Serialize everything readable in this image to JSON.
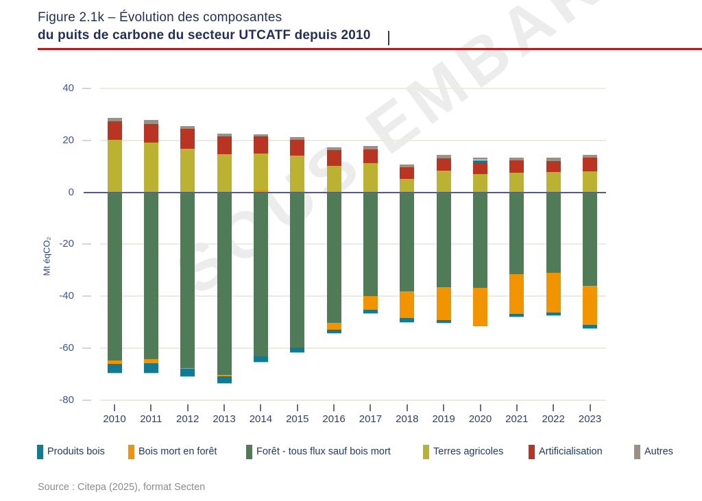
{
  "watermark": "SOUS EMBARGO",
  "header": {
    "title_line1": "Figure 2.1k – Évolution des composantes",
    "title_line2": "du puits de carbone du secteur UTCATF depuis 2010"
  },
  "source": "Source : Citepa (2025), format Secten",
  "accent_colors": {
    "title_text": "#212f5d",
    "title_rule_red": "#c0191c",
    "axis_text": "#3a55a0",
    "zero_line": "#4d5e85",
    "gridline": "#edeade",
    "watermark_gray": "#ececec",
    "source_gray": "#8c8c8c"
  },
  "chart_data": {
    "type": "bar",
    "stacked": true,
    "title": "Évolution des composantes du puits de carbone du secteur UTCATF depuis 2010",
    "xlabel": "",
    "ylabel": "Mt éqCO₂",
    "unit": "Mt éqCO2",
    "ylim": [
      -80,
      40
    ],
    "yticks": [
      40,
      20,
      0,
      -20,
      -40,
      -60,
      -80
    ],
    "grid": true,
    "legend_position": "bottom",
    "categories": [
      "2010",
      "2011",
      "2012",
      "2013",
      "2014",
      "2015",
      "2016",
      "2017",
      "2018",
      "2019",
      "2020",
      "2021",
      "2022",
      "2023"
    ],
    "series": [
      {
        "name": "Produits bois",
        "color": "#117b93",
        "values": [
          -3.4,
          -3.7,
          -2.9,
          -2.6,
          -2.1,
          -1.9,
          -1.4,
          -1.3,
          -1.4,
          -1.0,
          0.9,
          -1.1,
          -1.1,
          -1.3
        ]
      },
      {
        "name": "Bois mort en forêt",
        "color": "#f29400",
        "values": [
          -1.3,
          -1.6,
          -0.3,
          -0.7,
          0.8,
          0.5,
          -2.5,
          -5.3,
          -10.3,
          -12.7,
          -15.0,
          -15.2,
          -15.1,
          -15.0
        ]
      },
      {
        "name": "Forêt - tous flux sauf bois mort",
        "color": "#4f7c57",
        "values": [
          -64.7,
          -64.2,
          -67.6,
          -70.2,
          -63.2,
          -59.7,
          -50.3,
          -40.0,
          -38.2,
          -36.6,
          -36.7,
          -31.6,
          -31.1,
          -36.0
        ]
      },
      {
        "name": "Terres agricoles",
        "color": "#bcb232",
        "values": [
          20.1,
          19.0,
          16.8,
          14.6,
          14.0,
          13.6,
          10.2,
          11.1,
          5.1,
          8.3,
          7.1,
          7.6,
          7.7,
          8.1
        ]
      },
      {
        "name": "Artificialisation",
        "color": "#b93522",
        "values": [
          7.3,
          7.3,
          7.5,
          6.9,
          6.6,
          6.0,
          6.1,
          5.5,
          4.5,
          4.8,
          4.4,
          4.6,
          4.4,
          5.1
        ]
      },
      {
        "name": "Autres",
        "color": "#9b9183",
        "values": [
          1.2,
          1.5,
          1.2,
          1.1,
          1.0,
          1.2,
          1.1,
          1.2,
          1.2,
          1.2,
          1.0,
          1.2,
          1.3,
          1.2
        ]
      }
    ],
    "stack_order_positive": [
      "Bois mort en forêt",
      "Terres agricoles",
      "Artificialisation",
      "Produits bois",
      "Autres"
    ],
    "stack_order_negative": [
      "Forêt - tous flux sauf bois mort",
      "Bois mort en forêt",
      "Produits bois"
    ]
  }
}
